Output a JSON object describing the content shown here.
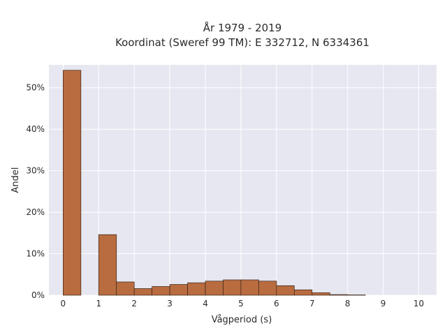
{
  "chart_data": {
    "type": "bar",
    "title": "År 1979 - 2019",
    "subtitle": "Koordinat (Sweref 99 TM): E 332712, N 6334361",
    "xlabel": "Vågperiod (s)",
    "ylabel": "Andel",
    "xlim": [
      -0.4,
      10.5
    ],
    "ylim": [
      0,
      0.555
    ],
    "xticks": [
      0,
      1,
      2,
      3,
      4,
      5,
      6,
      7,
      8,
      9,
      10
    ],
    "xtick_labels": [
      "0",
      "1",
      "2",
      "3",
      "4",
      "5",
      "6",
      "7",
      "8",
      "9",
      "10"
    ],
    "yticks": [
      0,
      0.1,
      0.2,
      0.3,
      0.4,
      0.5
    ],
    "ytick_labels": [
      "0%",
      "10%",
      "20%",
      "30%",
      "40%",
      "50%"
    ],
    "grid": true,
    "bin_width": 0.5,
    "bars": [
      {
        "x0": 0.0,
        "x1": 0.5,
        "value": 0.542
      },
      {
        "x0": 1.0,
        "x1": 1.5,
        "value": 0.146
      },
      {
        "x0": 1.5,
        "x1": 2.0,
        "value": 0.032
      },
      {
        "x0": 2.0,
        "x1": 2.5,
        "value": 0.016
      },
      {
        "x0": 2.5,
        "x1": 3.0,
        "value": 0.021
      },
      {
        "x0": 3.0,
        "x1": 3.5,
        "value": 0.026
      },
      {
        "x0": 3.5,
        "x1": 4.0,
        "value": 0.03
      },
      {
        "x0": 4.0,
        "x1": 4.5,
        "value": 0.034
      },
      {
        "x0": 4.5,
        "x1": 5.0,
        "value": 0.037
      },
      {
        "x0": 5.0,
        "x1": 5.5,
        "value": 0.037
      },
      {
        "x0": 5.5,
        "x1": 6.0,
        "value": 0.034
      },
      {
        "x0": 6.0,
        "x1": 6.5,
        "value": 0.023
      },
      {
        "x0": 6.5,
        "x1": 7.0,
        "value": 0.013
      },
      {
        "x0": 7.0,
        "x1": 7.5,
        "value": 0.006
      },
      {
        "x0": 7.5,
        "x1": 8.0,
        "value": 0.0015
      },
      {
        "x0": 8.0,
        "x1": 8.5,
        "value": 0.0008
      }
    ],
    "colors": {
      "bar_fill": "#b86c40",
      "bar_stroke": "#3a2416",
      "plot_bg": "#e6e7f0",
      "grid": "#ffffff"
    }
  }
}
